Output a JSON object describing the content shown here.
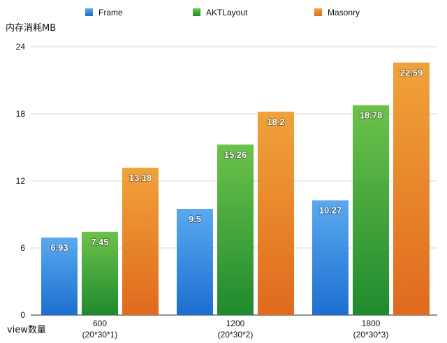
{
  "chart_data": {
    "type": "bar",
    "ylabel": "内存消耗MB",
    "xlabel": "view数量",
    "ylim": [
      0,
      24
    ],
    "yticks": [
      "0",
      "6",
      "12",
      "18",
      "24"
    ],
    "grid": true,
    "legend_position": "top",
    "categories": [
      {
        "line1": "600",
        "line2": "(20*30*1)"
      },
      {
        "line1": "1200",
        "line2": "(20*30*2)"
      },
      {
        "line1": "1800",
        "line2": "(20*30*3)"
      }
    ],
    "series": [
      {
        "name": "Frame",
        "values": [
          6.93,
          9.5,
          10.27
        ],
        "labels": [
          "6.93",
          "9.5",
          "10.27"
        ],
        "color_top": "#5aa9f0",
        "color_bottom": "#1c6fd0"
      },
      {
        "name": "AKTLayout",
        "values": [
          7.45,
          15.26,
          18.78
        ],
        "labels": [
          "7.45",
          "15.26",
          "18.78"
        ],
        "color_top": "#6cc24a",
        "color_bottom": "#1f8a2e"
      },
      {
        "name": "Masonry",
        "values": [
          13.18,
          18.2,
          22.59
        ],
        "labels": [
          "13.18",
          "18.2",
          "22.59"
        ],
        "color_top": "#f0a23a",
        "color_bottom": "#e06a1e"
      }
    ]
  }
}
